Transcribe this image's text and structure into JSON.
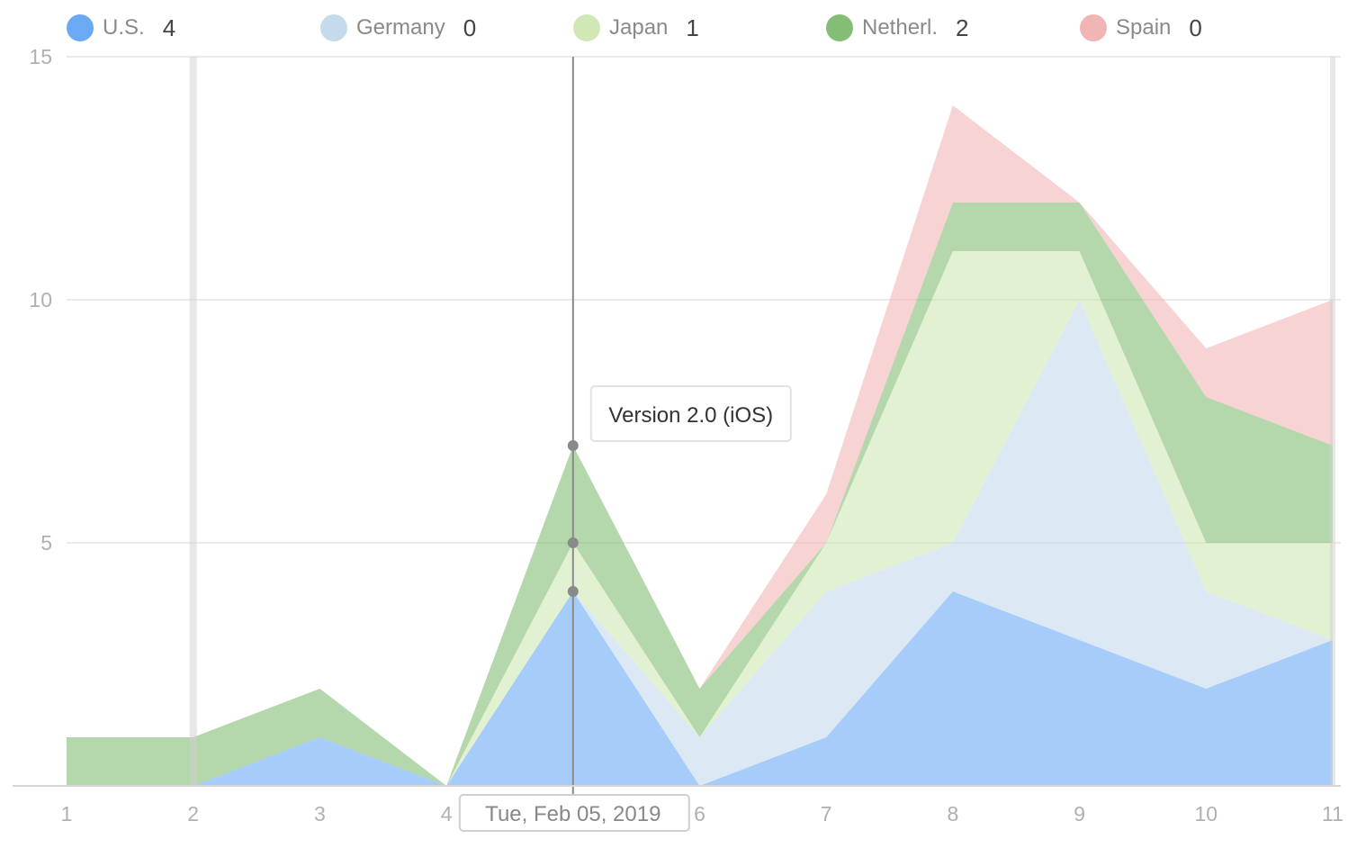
{
  "legend": [
    {
      "name": "U.S.",
      "value": "4",
      "color": "#6aaaf5"
    },
    {
      "name": "Germany",
      "value": "0",
      "color": "#c5dbec"
    },
    {
      "name": "Japan",
      "value": "1",
      "color": "#d1e8b6"
    },
    {
      "name": "Netherl.",
      "value": "2",
      "color": "#84bd74"
    },
    {
      "name": "Spain",
      "value": "0",
      "color": "#f2b5b5"
    }
  ],
  "hover": {
    "date_label": "Tue, Feb 05, 2019",
    "annotation": "Version 2.0 (iOS)"
  },
  "chart_data": {
    "type": "area",
    "stacked": true,
    "x": [
      1,
      2,
      3,
      4,
      5,
      6,
      7,
      8,
      9,
      10,
      11
    ],
    "x_tick_labels": [
      "1",
      "2",
      "3",
      "4",
      "",
      "6",
      "7",
      "8",
      "9",
      "10",
      "11"
    ],
    "ylim": [
      0,
      15
    ],
    "y_ticks": [
      5,
      10,
      15
    ],
    "grid": true,
    "legend_position": "top",
    "hover_index": 4,
    "series": [
      {
        "name": "U.S.",
        "color": "#6aaaf5",
        "values": [
          0,
          0,
          1,
          0,
          4,
          0,
          1,
          4,
          3,
          2,
          3
        ]
      },
      {
        "name": "Germany",
        "color": "#c5dbec",
        "values": [
          0,
          0,
          0,
          0,
          0,
          1,
          3,
          1,
          7,
          2,
          0
        ]
      },
      {
        "name": "Japan",
        "color": "#d1e8b6",
        "values": [
          0,
          0,
          0,
          0,
          1,
          0,
          1,
          6,
          1,
          1,
          2
        ]
      },
      {
        "name": "Netherl.",
        "color": "#84bd74",
        "values": [
          1,
          1,
          1,
          0,
          2,
          1,
          0,
          1,
          1,
          3,
          2
        ]
      },
      {
        "name": "Spain",
        "color": "#f2b5b5",
        "values": [
          0,
          0,
          0,
          0,
          0,
          0,
          1,
          2,
          0,
          1,
          3
        ]
      }
    ]
  }
}
